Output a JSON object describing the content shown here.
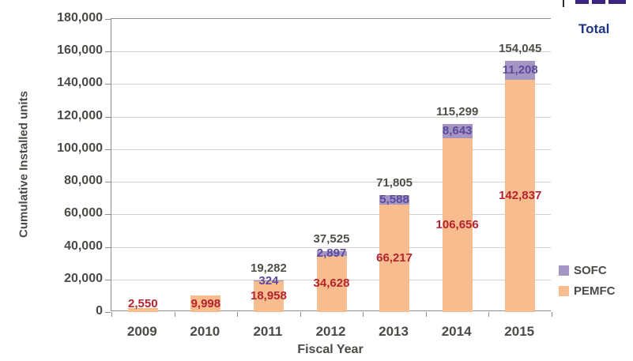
{
  "header": {
    "total_label": "Total"
  },
  "axes": {
    "y_label": "Cumulative Installed units",
    "x_label": "Fiscal Year",
    "y_ticks": [
      "0",
      "20,000",
      "40,000",
      "60,000",
      "80,000",
      "100,000",
      "120,000",
      "140,000",
      "160,000",
      "180,000"
    ]
  },
  "legend": [
    {
      "name": "SOFC",
      "color": "#a495c4"
    },
    {
      "name": "PEMFC",
      "color": "#f7bd8e"
    }
  ],
  "colors": {
    "pemfc_fill": "#f7bd8e",
    "sofc_fill": "#a495c4",
    "pemfc_label_text": "#b5232e",
    "sofc_label_text": "#5c4a9c",
    "total_label_text": "#4f4e49",
    "axis_line": "#8f8d88",
    "gridline": "#d2cfc9",
    "tick_text": "#4a4a46",
    "header_total_text": "#1e3580",
    "logo_purple": "#3c2580"
  },
  "chart_data": {
    "type": "bar",
    "stacked": true,
    "title": "",
    "xlabel": "Fiscal Year",
    "ylabel": "Cumulative Installed units",
    "ylim": [
      0,
      180000
    ],
    "grid": true,
    "legend_position": "right",
    "categories": [
      "2009",
      "2010",
      "2011",
      "2012",
      "2013",
      "2014",
      "2015"
    ],
    "series": [
      {
        "name": "PEMFC",
        "color": "#f7bd8e",
        "values": [
          2550,
          9998,
          18958,
          34628,
          66217,
          106656,
          142837
        ],
        "labels": [
          "2,550",
          "9,998",
          "18,958",
          "34,628",
          "66,217",
          "106,656",
          "142,837"
        ],
        "label_color": "#b5232e"
      },
      {
        "name": "SOFC",
        "color": "#a495c4",
        "values": [
          0,
          0,
          324,
          2897,
          5588,
          8643,
          11208
        ],
        "labels": [
          null,
          null,
          "324",
          "2,897",
          "5,588",
          "8,643",
          "11,208"
        ],
        "label_color": "#5c4a9c"
      }
    ],
    "totals": [
      2550,
      9998,
      19282,
      37525,
      71805,
      115299,
      154045
    ],
    "total_labels": [
      null,
      null,
      "19,282",
      "37,525",
      "71,805",
      "115,299",
      "154,045"
    ],
    "total_label_color": "#4f4e49"
  }
}
